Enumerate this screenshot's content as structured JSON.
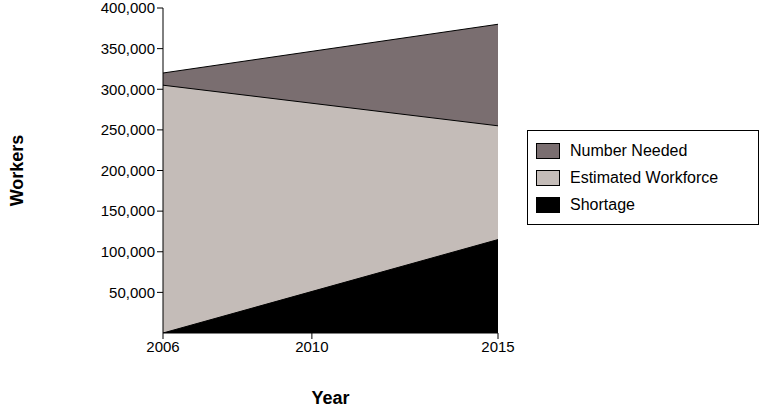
{
  "chart_data": {
    "type": "area",
    "x_label": "Year",
    "y_label": "Workers",
    "x": [
      2006,
      2015
    ],
    "xlim": [
      2006,
      2015
    ],
    "xticks": [
      2006,
      2010,
      2015
    ],
    "ylim": [
      0,
      400000
    ],
    "yticks": [
      {
        "value": 50000,
        "label": "50,000"
      },
      {
        "value": 100000,
        "label": "100,000"
      },
      {
        "value": 150000,
        "label": "150,000"
      },
      {
        "value": 200000,
        "label": "200,000"
      },
      {
        "value": 250000,
        "label": "250,000"
      },
      {
        "value": 300000,
        "label": "300,000"
      },
      {
        "value": 350000,
        "label": "350,000"
      },
      {
        "value": 400000,
        "label": "400,000"
      }
    ],
    "stacked": false,
    "grid": false,
    "legend": "right",
    "series": [
      {
        "name": "Number Needed",
        "color": "#7a6e70",
        "values": [
          320000,
          380000
        ]
      },
      {
        "name": "Estimated Workforce",
        "color": "#c4bcb8",
        "values": [
          305000,
          255000
        ]
      },
      {
        "name": "Shortage",
        "color": "#000000",
        "values": [
          0,
          115000
        ]
      }
    ]
  }
}
